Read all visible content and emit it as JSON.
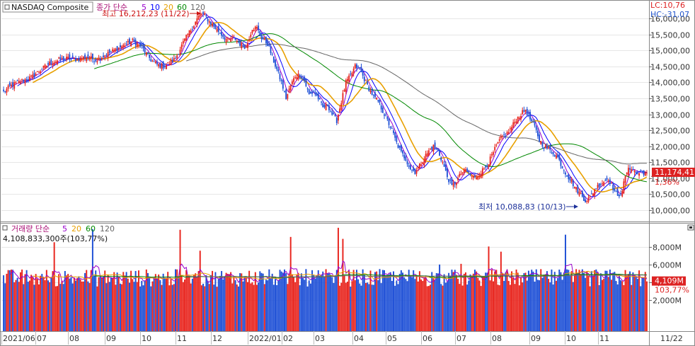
{
  "chart_data": {
    "type": "candlestick",
    "title": "NASDAQ Composite",
    "price_legend": {
      "prefix": "종가 단순",
      "periods": [
        "5",
        "10",
        "20",
        "60",
        "120"
      ],
      "colors": [
        "#9900cc",
        "#0000ff",
        "#e8a000",
        "#008800",
        "#666666"
      ]
    },
    "volume_legend": {
      "prefix": "거래량 단순",
      "periods": [
        "5",
        "20",
        "60",
        "120"
      ],
      "colors": [
        "#9900cc",
        "#e8a000",
        "#008800",
        "#666666"
      ],
      "current_text": "4,108,833,300주(103,77%)"
    },
    "top_right": {
      "lc": "LC:10,76",
      "hc": "HC:-31,07"
    },
    "high_annotation": "최고 16,212,23 (11/22)",
    "low_annotation": "최저 10,088,83 (10/13)",
    "price_axis": {
      "ticks": [
        {
          "value": 10000,
          "label": "10,000,00"
        },
        {
          "value": 10500,
          "label": "10,500,00"
        },
        {
          "value": 11000,
          "label": "11,000,00"
        },
        {
          "value": 11500,
          "label": "11,500,00"
        },
        {
          "value": 12000,
          "label": "12,000,00"
        },
        {
          "value": 12500,
          "label": "12,500,00"
        },
        {
          "value": 13000,
          "label": "13,000,00"
        },
        {
          "value": 13500,
          "label": "13,500,00"
        },
        {
          "value": 14000,
          "label": "14,000,00"
        },
        {
          "value": 14500,
          "label": "14,500,00"
        },
        {
          "value": 15000,
          "label": "15,000,00"
        },
        {
          "value": 15500,
          "label": "15,500,00"
        },
        {
          "value": 16000,
          "label": "16,000,00"
        }
      ],
      "current_price_label": "11,174,41",
      "current_price": 11174.41,
      "change_label": "1,36%"
    },
    "volume_axis": {
      "ticks": [
        {
          "value": 2000,
          "label": "2,000M"
        },
        {
          "value": 4000,
          "label": "4,000M"
        },
        {
          "value": 6000,
          "label": "6,000M"
        },
        {
          "value": 8000,
          "label": "8,000M"
        }
      ],
      "current_volume_label": "4,109M",
      "current_volume_millions": 4109,
      "current_pct_label": "103,77%"
    },
    "x_axis": {
      "labels": [
        "2021/06",
        "07",
        "08",
        "09",
        "10",
        "11",
        "12",
        "2022/01",
        "02",
        "03",
        "04",
        "05",
        "06",
        "07",
        "08",
        "09",
        "10",
        "11"
      ],
      "right_label": "11/22"
    },
    "price_anchors": [
      [
        0,
        13700
      ],
      [
        5,
        13900
      ],
      [
        12,
        14050
      ],
      [
        18,
        14150
      ],
      [
        24,
        14380
      ],
      [
        30,
        14600
      ],
      [
        36,
        14700
      ],
      [
        42,
        14750
      ],
      [
        48,
        14720
      ],
      [
        54,
        14800
      ],
      [
        60,
        14700
      ],
      [
        66,
        14850
      ],
      [
        72,
        15000
      ],
      [
        78,
        15150
      ],
      [
        84,
        15300
      ],
      [
        90,
        15100
      ],
      [
        96,
        14700
      ],
      [
        100,
        14550
      ],
      [
        104,
        14500
      ],
      [
        108,
        14600
      ],
      [
        112,
        14750
      ],
      [
        116,
        15150
      ],
      [
        120,
        15500
      ],
      [
        124,
        15800
      ],
      [
        128,
        16150
      ],
      [
        131,
        16100
      ],
      [
        134,
        15900
      ],
      [
        138,
        15700
      ],
      [
        142,
        15500
      ],
      [
        146,
        15300
      ],
      [
        150,
        15400
      ],
      [
        154,
        15200
      ],
      [
        158,
        15100
      ],
      [
        162,
        15700
      ],
      [
        165,
        15700
      ],
      [
        168,
        15400
      ],
      [
        172,
        15200
      ],
      [
        175,
        14800
      ],
      [
        178,
        14400
      ],
      [
        181,
        14000
      ],
      [
        184,
        13500
      ],
      [
        187,
        13900
      ],
      [
        190,
        14200
      ],
      [
        193,
        14250
      ],
      [
        196,
        14050
      ],
      [
        199,
        13600
      ],
      [
        202,
        13700
      ],
      [
        205,
        13500
      ],
      [
        208,
        13200
      ],
      [
        211,
        13300
      ],
      [
        214,
        13000
      ],
      [
        217,
        12800
      ],
      [
        220,
        13400
      ],
      [
        223,
        14000
      ],
      [
        226,
        14200
      ],
      [
        229,
        14500
      ],
      [
        232,
        14400
      ],
      [
        235,
        14100
      ],
      [
        238,
        13800
      ],
      [
        241,
        13550
      ],
      [
        244,
        13400
      ],
      [
        247,
        13100
      ],
      [
        250,
        12800
      ],
      [
        253,
        12500
      ],
      [
        256,
        12100
      ],
      [
        259,
        11800
      ],
      [
        262,
        11600
      ],
      [
        265,
        11300
      ],
      [
        268,
        11200
      ],
      [
        271,
        11400
      ],
      [
        274,
        11650
      ],
      [
        277,
        11850
      ],
      [
        280,
        12000
      ],
      [
        283,
        11850
      ],
      [
        286,
        11500
      ],
      [
        289,
        11050
      ],
      [
        292,
        10750
      ],
      [
        295,
        10900
      ],
      [
        298,
        11150
      ],
      [
        301,
        11250
      ],
      [
        304,
        11100
      ],
      [
        307,
        11000
      ],
      [
        310,
        11150
      ],
      [
        313,
        11300
      ],
      [
        316,
        11500
      ],
      [
        319,
        11800
      ],
      [
        322,
        12100
      ],
      [
        325,
        12300
      ],
      [
        328,
        12400
      ],
      [
        331,
        12600
      ],
      [
        334,
        12850
      ],
      [
        337,
        13000
      ],
      [
        340,
        13150
      ],
      [
        343,
        12850
      ],
      [
        346,
        12600
      ],
      [
        349,
        12200
      ],
      [
        352,
        12000
      ],
      [
        355,
        11900
      ],
      [
        358,
        11800
      ],
      [
        361,
        11650
      ],
      [
        364,
        11350
      ],
      [
        367,
        11100
      ],
      [
        370,
        10900
      ],
      [
        373,
        10650
      ],
      [
        376,
        10500
      ],
      [
        379,
        10300
      ],
      [
        382,
        10400
      ],
      [
        385,
        10650
      ],
      [
        388,
        10800
      ],
      [
        391,
        10900
      ],
      [
        394,
        11000
      ],
      [
        397,
        10700
      ],
      [
        400,
        10400
      ],
      [
        403,
        10650
      ],
      [
        406,
        11200
      ],
      [
        409,
        11350
      ],
      [
        412,
        11150
      ],
      [
        415,
        11174.41
      ]
    ],
    "volume_stats": {
      "unit": "M",
      "typical_range": [
        3500,
        5500
      ]
    }
  }
}
